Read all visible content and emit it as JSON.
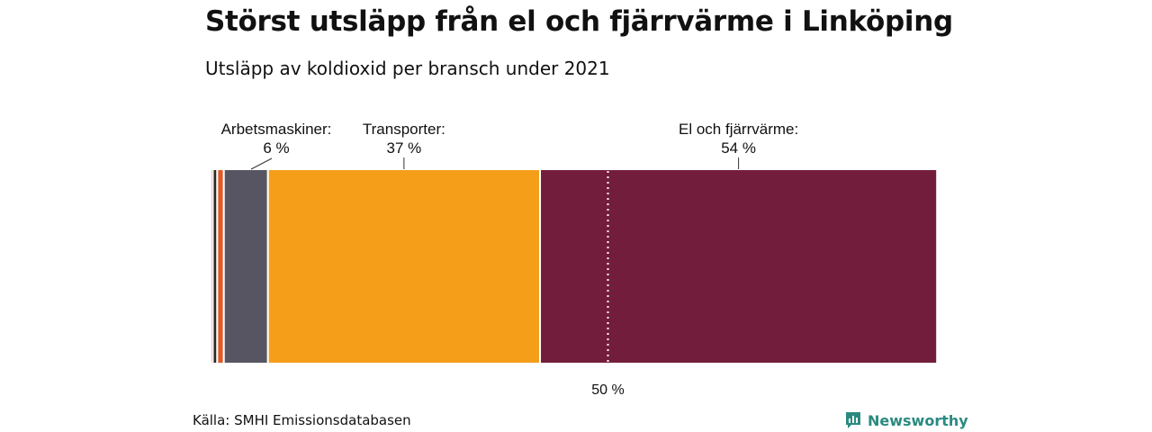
{
  "chart_data": {
    "type": "bar",
    "orientation": "horizontal-stacked-100",
    "title": "Störst utsläpp från el och fjärrvärme i Linköping",
    "subtitle": "Utsläpp av koldioxid per bransch under 2021",
    "xlim": [
      0,
      100
    ],
    "reference_line": {
      "value": 50,
      "label": "50 %"
    },
    "series": [
      {
        "name": "Övrigt 1",
        "value": 0.3,
        "color": "#c96a3e",
        "label": "",
        "value_label": ""
      },
      {
        "name": "Övrigt 2",
        "value": 0.6,
        "color": "#2b2b2b",
        "label": "",
        "value_label": ""
      },
      {
        "name": "Övrigt 3",
        "value": 0.9,
        "color": "#e05a25",
        "label": "",
        "value_label": ""
      },
      {
        "name": "Arbetsmaskiner",
        "value": 6,
        "color": "#575562",
        "label": "Arbetsmaskiner:",
        "value_label": "6 %"
      },
      {
        "name": "Transporter",
        "value": 37,
        "color": "#f59e1a",
        "label": "Transporter:",
        "value_label": "37 %"
      },
      {
        "name": "El och fjärrvärme",
        "value": 54,
        "color": "#731d3c",
        "label": "El och fjärrvärme:",
        "value_label": "54 %"
      }
    ]
  },
  "source": "Källa: SMHI Emissionsdatabasen",
  "brand": {
    "name": "Newsworthy",
    "color": "#2a8a80",
    "icon": "newsworthy-logo-icon"
  }
}
